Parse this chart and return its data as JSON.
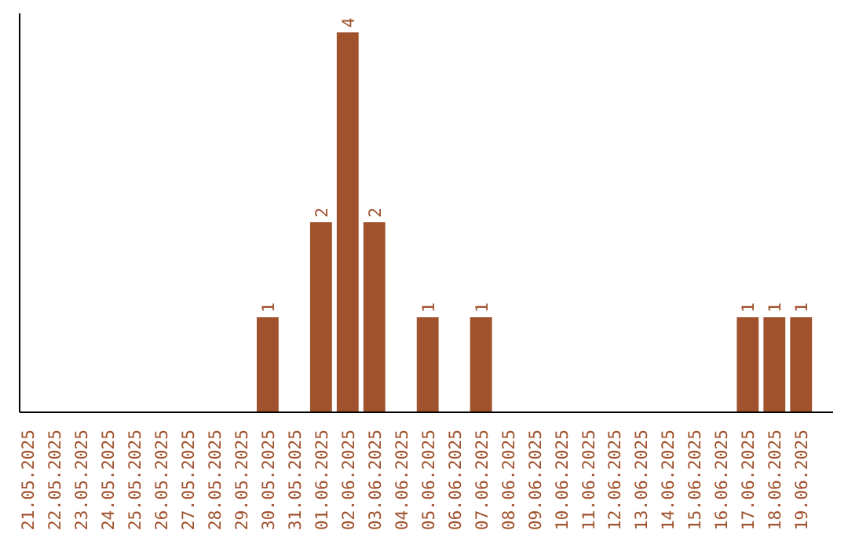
{
  "chart_data": {
    "type": "bar",
    "categories": [
      "21.05.2025",
      "22.05.2025",
      "23.05.2025",
      "24.05.2025",
      "25.05.2025",
      "26.05.2025",
      "27.05.2025",
      "28.05.2025",
      "29.05.2025",
      "30.05.2025",
      "31.05.2025",
      "01.06.2025",
      "02.06.2025",
      "03.06.2025",
      "04.06.2025",
      "05.06.2025",
      "06.06.2025",
      "07.06.2025",
      "08.06.2025",
      "09.06.2025",
      "10.06.2025",
      "11.06.2025",
      "12.06.2025",
      "13.06.2025",
      "14.06.2025",
      "15.06.2025",
      "16.06.2025",
      "17.06.2025",
      "18.06.2025",
      "19.06.2025"
    ],
    "values": [
      0,
      0,
      0,
      0,
      0,
      0,
      0,
      0,
      0,
      1,
      0,
      2,
      4,
      2,
      0,
      1,
      0,
      1,
      0,
      0,
      0,
      0,
      0,
      0,
      0,
      0,
      0,
      1,
      1,
      1
    ],
    "value_labels": [
      null,
      null,
      null,
      null,
      null,
      null,
      null,
      null,
      null,
      "1",
      null,
      "2",
      "4",
      "2",
      null,
      "1",
      null,
      "1",
      null,
      null,
      null,
      null,
      null,
      null,
      null,
      null,
      null,
      "1",
      "1",
      "1"
    ],
    "color": "#a0522d",
    "grid": false,
    "tick_labels": "x"
  }
}
